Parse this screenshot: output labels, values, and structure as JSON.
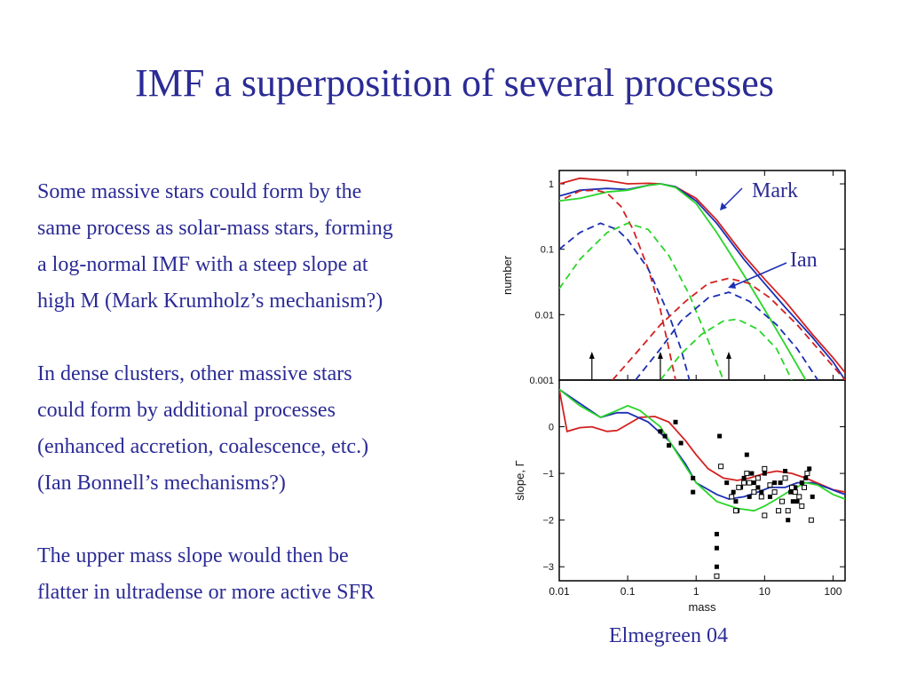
{
  "slide": {
    "title": "IMF a superposition of several processes",
    "paragraphs": [
      [
        "Some massive stars could form by the",
        "same process as solar-mass stars, forming",
        "a log-normal IMF with a steep slope at",
        "high M (Mark Krumholz’s mechanism?)"
      ],
      [
        "In dense clusters, other massive stars",
        "could form by additional processes",
        "(enhanced accretion, coalescence, etc.)",
        "(Ian Bonnell’s mechanisms?)"
      ],
      [
        "The upper mass slope would then be",
        "flatter in ultradense or more active SFR"
      ]
    ],
    "caption": "Elmegreen 04"
  },
  "chart_data": {
    "type": "line",
    "xlabel": "mass",
    "x_ticks": [
      "0.01",
      "0.1",
      "1",
      "10",
      "100"
    ],
    "xlim": [
      0.01,
      150
    ],
    "x_scale": "log",
    "colors": {
      "red": "#d42020",
      "blue": "#1c2fb4",
      "green": "#2ad52a"
    },
    "annotations": [
      "Mark",
      "Ian"
    ],
    "panels": [
      {
        "name": "number",
        "ylabel": "number",
        "y_ticks": [
          "1",
          "0.1",
          "0.01",
          "0.001"
        ],
        "y_scale": "log",
        "ylim": [
          0.001,
          1.6
        ],
        "series": [
          {
            "color": "red",
            "style": "solid",
            "points": [
              [
                0.01,
                1.0
              ],
              [
                0.02,
                1.22
              ],
              [
                0.05,
                1.12
              ],
              [
                0.1,
                1.0
              ],
              [
                0.2,
                1.02
              ],
              [
                0.3,
                1.0
              ],
              [
                0.5,
                0.9
              ],
              [
                1,
                0.6
              ],
              [
                2,
                0.28
              ],
              [
                5,
                0.08
              ],
              [
                10,
                0.035
              ],
              [
                20,
                0.016
              ],
              [
                50,
                0.005
              ],
              [
                100,
                0.0022
              ],
              [
                150,
                0.0013
              ]
            ]
          },
          {
            "color": "blue",
            "style": "solid",
            "points": [
              [
                0.01,
                0.65
              ],
              [
                0.02,
                0.8
              ],
              [
                0.05,
                0.85
              ],
              [
                0.1,
                0.82
              ],
              [
                0.2,
                0.95
              ],
              [
                0.3,
                1.0
              ],
              [
                0.5,
                0.9
              ],
              [
                1,
                0.55
              ],
              [
                2,
                0.25
              ],
              [
                5,
                0.07
              ],
              [
                10,
                0.03
              ],
              [
                20,
                0.013
              ],
              [
                50,
                0.0045
              ],
              [
                100,
                0.0019
              ],
              [
                150,
                0.001
              ]
            ]
          },
          {
            "color": "green",
            "style": "solid",
            "points": [
              [
                0.01,
                0.55
              ],
              [
                0.02,
                0.6
              ],
              [
                0.05,
                0.75
              ],
              [
                0.1,
                0.8
              ],
              [
                0.2,
                0.95
              ],
              [
                0.3,
                1.0
              ],
              [
                0.5,
                0.88
              ],
              [
                1,
                0.5
              ],
              [
                2,
                0.18
              ],
              [
                5,
                0.04
              ],
              [
                10,
                0.012
              ],
              [
                20,
                0.0035
              ],
              [
                40,
                0.001
              ]
            ]
          },
          {
            "color": "red",
            "style": "dashed",
            "points": [
              [
                0.012,
                0.6
              ],
              [
                0.02,
                0.78
              ],
              [
                0.035,
                0.8
              ],
              [
                0.05,
                0.72
              ],
              [
                0.08,
                0.45
              ],
              [
                0.12,
                0.2
              ],
              [
                0.2,
                0.05
              ],
              [
                0.3,
                0.012
              ],
              [
                0.4,
                0.003
              ],
              [
                0.5,
                0.001
              ]
            ]
          },
          {
            "color": "blue",
            "style": "dashed",
            "points": [
              [
                0.01,
                0.1
              ],
              [
                0.02,
                0.18
              ],
              [
                0.04,
                0.25
              ],
              [
                0.07,
                0.2
              ],
              [
                0.1,
                0.14
              ],
              [
                0.2,
                0.05
              ],
              [
                0.4,
                0.01
              ],
              [
                0.6,
                0.003
              ],
              [
                0.8,
                0.001
              ]
            ]
          },
          {
            "color": "green",
            "style": "dashed",
            "points": [
              [
                0.01,
                0.025
              ],
              [
                0.02,
                0.07
              ],
              [
                0.05,
                0.18
              ],
              [
                0.1,
                0.25
              ],
              [
                0.2,
                0.2
              ],
              [
                0.4,
                0.08
              ],
              [
                0.8,
                0.02
              ],
              [
                1.5,
                0.004
              ],
              [
                2.5,
                0.001
              ]
            ]
          },
          {
            "color": "red",
            "style": "dashed",
            "points": [
              [
                0.06,
                0.001
              ],
              [
                0.15,
                0.003
              ],
              [
                0.3,
                0.007
              ],
              [
                0.7,
                0.016
              ],
              [
                1.5,
                0.03
              ],
              [
                3,
                0.036
              ],
              [
                6,
                0.03
              ],
              [
                12,
                0.018
              ],
              [
                30,
                0.007
              ],
              [
                70,
                0.0025
              ],
              [
                150,
                0.001
              ]
            ]
          },
          {
            "color": "blue",
            "style": "dashed",
            "points": [
              [
                0.13,
                0.001
              ],
              [
                0.3,
                0.003
              ],
              [
                0.6,
                0.008
              ],
              [
                1.5,
                0.018
              ],
              [
                3,
                0.022
              ],
              [
                6,
                0.016
              ],
              [
                15,
                0.007
              ],
              [
                30,
                0.003
              ],
              [
                60,
                0.001
              ]
            ]
          },
          {
            "color": "green",
            "style": "dashed",
            "points": [
              [
                0.3,
                0.001
              ],
              [
                0.6,
                0.0025
              ],
              [
                1.2,
                0.005
              ],
              [
                2.5,
                0.008
              ],
              [
                4,
                0.0085
              ],
              [
                8,
                0.006
              ],
              [
                15,
                0.003
              ],
              [
                25,
                0.001
              ]
            ]
          }
        ],
        "markers": [
          0.03,
          0.3,
          3
        ]
      },
      {
        "name": "slope",
        "ylabel": "slope, Γ",
        "y_ticks": [
          "0",
          "−1",
          "−2",
          "−3"
        ],
        "ylim": [
          -3.3,
          1.0
        ],
        "series": [
          {
            "color": "red",
            "points": [
              [
                0.01,
                0.8
              ],
              [
                0.013,
                -0.1
              ],
              [
                0.02,
                -0.02
              ],
              [
                0.03,
                0.0
              ],
              [
                0.05,
                -0.1
              ],
              [
                0.07,
                -0.08
              ],
              [
                0.1,
                0.05
              ],
              [
                0.15,
                0.2
              ],
              [
                0.25,
                0.22
              ],
              [
                0.4,
                0.1
              ],
              [
                0.7,
                -0.3
              ],
              [
                1,
                -0.6
              ],
              [
                1.5,
                -0.9
              ],
              [
                2.5,
                -1.1
              ],
              [
                4,
                -1.15
              ],
              [
                6,
                -1.1
              ],
              [
                10,
                -1.0
              ],
              [
                15,
                -0.95
              ],
              [
                25,
                -1.0
              ],
              [
                40,
                -1.1
              ],
              [
                70,
                -1.25
              ],
              [
                100,
                -1.35
              ],
              [
                150,
                -1.4
              ]
            ]
          },
          {
            "color": "blue",
            "points": [
              [
                0.01,
                0.8
              ],
              [
                0.02,
                0.5
              ],
              [
                0.04,
                0.2
              ],
              [
                0.07,
                0.3
              ],
              [
                0.1,
                0.3
              ],
              [
                0.2,
                0.1
              ],
              [
                0.4,
                -0.3
              ],
              [
                0.7,
                -0.8
              ],
              [
                1,
                -1.2
              ],
              [
                2,
                -1.45
              ],
              [
                3,
                -1.55
              ],
              [
                5,
                -1.5
              ],
              [
                8,
                -1.4
              ],
              [
                12,
                -1.3
              ],
              [
                20,
                -1.3
              ],
              [
                30,
                -1.2
              ],
              [
                50,
                -1.2
              ],
              [
                80,
                -1.3
              ],
              [
                120,
                -1.4
              ],
              [
                150,
                -1.45
              ]
            ]
          },
          {
            "color": "green",
            "points": [
              [
                0.01,
                0.8
              ],
              [
                0.02,
                0.45
              ],
              [
                0.04,
                0.2
              ],
              [
                0.07,
                0.35
              ],
              [
                0.1,
                0.45
              ],
              [
                0.15,
                0.35
              ],
              [
                0.3,
                0.0
              ],
              [
                0.6,
                -0.7
              ],
              [
                1,
                -1.2
              ],
              [
                2,
                -1.6
              ],
              [
                4,
                -1.75
              ],
              [
                7,
                -1.8
              ],
              [
                10,
                -1.7
              ],
              [
                15,
                -1.55
              ],
              [
                25,
                -1.35
              ],
              [
                40,
                -1.2
              ],
              [
                60,
                -1.25
              ],
              [
                100,
                -1.45
              ],
              [
                150,
                -1.55
              ]
            ]
          }
        ],
        "filled_points": [
          [
            0.3,
            -0.1
          ],
          [
            0.35,
            -0.2
          ],
          [
            0.4,
            -0.4
          ],
          [
            0.5,
            0.1
          ],
          [
            0.6,
            -0.35
          ],
          [
            0.9,
            -1.1
          ],
          [
            0.9,
            -1.4
          ],
          [
            2,
            -2.3
          ],
          [
            2,
            -2.6
          ],
          [
            2,
            -3.0
          ],
          [
            2.2,
            -0.2
          ],
          [
            2.8,
            -1.2
          ],
          [
            3.5,
            -1.4
          ],
          [
            3.8,
            -1.6
          ],
          [
            4,
            -1.8
          ],
          [
            4.5,
            -1.3
          ],
          [
            5,
            -1.1
          ],
          [
            5.5,
            -0.6
          ],
          [
            6,
            -1.5
          ],
          [
            6.5,
            -1.0
          ],
          [
            7,
            -1.2
          ],
          [
            8,
            -1.3
          ],
          [
            9,
            -1.4
          ],
          [
            10,
            -1.0
          ],
          [
            12,
            -1.5
          ],
          [
            14,
            -1.2
          ],
          [
            17,
            -1.2
          ],
          [
            20,
            -0.95
          ],
          [
            22,
            -2.0
          ],
          [
            24,
            -1.4
          ],
          [
            26,
            -1.6
          ],
          [
            28,
            -1.3
          ],
          [
            30,
            -1.6
          ],
          [
            35,
            -1.2
          ],
          [
            40,
            -1.1
          ],
          [
            45,
            -0.9
          ],
          [
            50,
            -1.5
          ]
        ],
        "open_points": [
          [
            2,
            -3.2
          ],
          [
            2.3,
            -0.85
          ],
          [
            3.3,
            -1.5
          ],
          [
            3.8,
            -1.8
          ],
          [
            4.2,
            -1.3
          ],
          [
            5,
            -1.2
          ],
          [
            5.5,
            -1.0
          ],
          [
            6,
            -1.2
          ],
          [
            7,
            -1.4
          ],
          [
            8,
            -1.1
          ],
          [
            9,
            -1.5
          ],
          [
            10,
            -0.9
          ],
          [
            10,
            -1.9
          ],
          [
            12,
            -1.25
          ],
          [
            14,
            -1.4
          ],
          [
            16,
            -1.8
          ],
          [
            18,
            -1.6
          ],
          [
            20,
            -1.1
          ],
          [
            22,
            -1.8
          ],
          [
            25,
            -1.3
          ],
          [
            28,
            -1.4
          ],
          [
            32,
            -1.5
          ],
          [
            35,
            -1.7
          ],
          [
            38,
            -1.3
          ],
          [
            42,
            -1.0
          ],
          [
            48,
            -2.0
          ]
        ]
      }
    ]
  }
}
